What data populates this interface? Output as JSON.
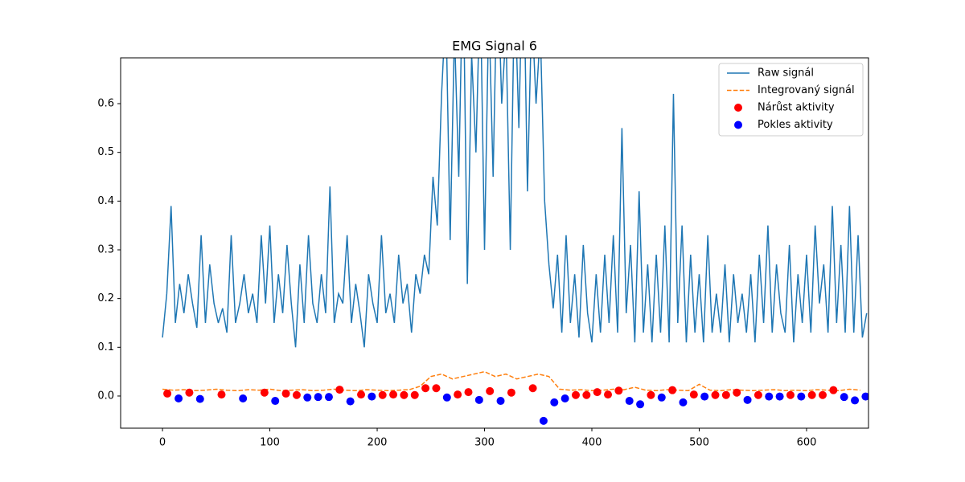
{
  "chart_data": {
    "type": "line",
    "title": "EMG Signal 6",
    "xlim": [
      -39,
      657.7
    ],
    "ylim": [
      -0.066,
      0.694
    ],
    "xticks": [
      0,
      100,
      200,
      300,
      400,
      500,
      600
    ],
    "yticks": [
      {
        "value": 0,
        "label": "0.0"
      },
      0.1,
      0.2,
      0.3,
      0.4,
      0.5,
      0.6
    ],
    "legend": "upper right",
    "series": [
      {
        "name": "Raw signál",
        "color": "#1f77b4",
        "linestyle": "solid",
        "x": [
          0,
          4,
          8,
          12,
          16,
          20,
          24,
          28,
          32,
          36,
          40,
          44,
          48,
          52,
          56,
          60,
          64,
          68,
          72,
          76,
          80,
          84,
          88,
          92,
          96,
          100,
          104,
          108,
          112,
          116,
          120,
          124,
          128,
          132,
          136,
          140,
          144,
          148,
          152,
          156,
          160,
          164,
          168,
          172,
          176,
          180,
          184,
          188,
          192,
          196,
          200,
          204,
          208,
          212,
          216,
          220,
          224,
          228,
          232,
          236,
          240,
          244,
          248,
          252,
          256,
          260,
          264,
          268,
          272,
          276,
          280,
          284,
          288,
          292,
          296,
          300,
          304,
          308,
          312,
          316,
          320,
          324,
          328,
          332,
          336,
          340,
          344,
          348,
          352,
          356,
          360,
          364,
          368,
          372,
          376,
          380,
          384,
          388,
          392,
          396,
          400,
          404,
          408,
          412,
          416,
          420,
          424,
          428,
          432,
          436,
          440,
          444,
          448,
          452,
          456,
          460,
          464,
          468,
          472,
          476,
          480,
          484,
          488,
          492,
          496,
          500,
          504,
          508,
          512,
          516,
          520,
          524,
          528,
          532,
          536,
          540,
          544,
          548,
          552,
          556,
          560,
          564,
          568,
          572,
          576,
          580,
          584,
          588,
          592,
          596,
          600,
          604,
          608,
          612,
          616,
          620,
          624,
          628,
          632,
          636,
          640,
          644,
          648,
          652,
          656
        ],
        "values": [
          0.12,
          0.21,
          0.39,
          0.15,
          0.23,
          0.17,
          0.25,
          0.19,
          0.14,
          0.33,
          0.15,
          0.27,
          0.19,
          0.15,
          0.18,
          0.13,
          0.33,
          0.15,
          0.19,
          0.25,
          0.17,
          0.21,
          0.15,
          0.33,
          0.19,
          0.35,
          0.15,
          0.25,
          0.17,
          0.31,
          0.19,
          0.1,
          0.27,
          0.15,
          0.33,
          0.19,
          0.15,
          0.25,
          0.17,
          0.43,
          0.15,
          0.21,
          0.19,
          0.33,
          0.15,
          0.23,
          0.17,
          0.1,
          0.25,
          0.19,
          0.15,
          0.33,
          0.17,
          0.21,
          0.15,
          0.29,
          0.19,
          0.23,
          0.13,
          0.25,
          0.21,
          0.29,
          0.25,
          0.45,
          0.35,
          0.62,
          0.8,
          0.32,
          0.75,
          0.45,
          0.9,
          0.23,
          0.7,
          0.5,
          0.85,
          0.3,
          0.8,
          0.45,
          0.9,
          0.6,
          0.75,
          0.3,
          0.85,
          0.55,
          0.95,
          0.42,
          0.8,
          0.6,
          0.75,
          0.4,
          0.27,
          0.18,
          0.29,
          0.13,
          0.33,
          0.15,
          0.25,
          0.12,
          0.31,
          0.17,
          0.11,
          0.25,
          0.13,
          0.29,
          0.15,
          0.33,
          0.13,
          0.55,
          0.17,
          0.31,
          0.11,
          0.42,
          0.13,
          0.27,
          0.11,
          0.29,
          0.13,
          0.35,
          0.11,
          0.62,
          0.15,
          0.35,
          0.11,
          0.29,
          0.13,
          0.25,
          0.11,
          0.33,
          0.13,
          0.21,
          0.13,
          0.27,
          0.11,
          0.25,
          0.15,
          0.21,
          0.13,
          0.25,
          0.11,
          0.29,
          0.15,
          0.35,
          0.13,
          0.27,
          0.17,
          0.13,
          0.31,
          0.11,
          0.25,
          0.15,
          0.29,
          0.13,
          0.35,
          0.19,
          0.27,
          0.13,
          0.39,
          0.15,
          0.31,
          0.13,
          0.39,
          0.13,
          0.33,
          0.12,
          0.17
        ]
      },
      {
        "name": "Integrovaný signál",
        "color": "#ff7f0e",
        "linestyle": "dashed",
        "x": [
          0,
          10,
          20,
          30,
          40,
          50,
          60,
          70,
          80,
          90,
          100,
          110,
          120,
          130,
          140,
          150,
          160,
          170,
          180,
          190,
          200,
          210,
          220,
          230,
          240,
          250,
          260,
          270,
          280,
          290,
          300,
          310,
          320,
          330,
          340,
          350,
          360,
          370,
          380,
          390,
          400,
          410,
          420,
          430,
          440,
          450,
          460,
          470,
          480,
          490,
          500,
          510,
          520,
          530,
          540,
          550,
          560,
          570,
          580,
          590,
          600,
          610,
          620,
          630,
          640,
          650
        ],
        "values": [
          0.014,
          0.012,
          0.013,
          0.011,
          0.012,
          0.014,
          0.012,
          0.011,
          0.013,
          0.012,
          0.014,
          0.011,
          0.012,
          0.013,
          0.011,
          0.012,
          0.014,
          0.012,
          0.011,
          0.013,
          0.012,
          0.011,
          0.012,
          0.013,
          0.02,
          0.04,
          0.045,
          0.035,
          0.04,
          0.045,
          0.05,
          0.04,
          0.045,
          0.035,
          0.04,
          0.045,
          0.04,
          0.014,
          0.012,
          0.013,
          0.011,
          0.012,
          0.014,
          0.013,
          0.018,
          0.012,
          0.011,
          0.013,
          0.012,
          0.011,
          0.024,
          0.012,
          0.011,
          0.013,
          0.012,
          0.011,
          0.012,
          0.013,
          0.011,
          0.012,
          0.011,
          0.013,
          0.012,
          0.011,
          0.014,
          0.012
        ]
      },
      {
        "name": "Nárůst aktivity",
        "color": "#ff0000",
        "marker": "o",
        "x": [
          4.5,
          25,
          55,
          95,
          115,
          125,
          165,
          185,
          205,
          215,
          225,
          235,
          245,
          255,
          275,
          285,
          305,
          325,
          345,
          385,
          395,
          405,
          415,
          425,
          455,
          475,
          495,
          515,
          525,
          535,
          555,
          585,
          605,
          615,
          625
        ],
        "values": [
          0.005,
          0.007,
          0.003,
          0.007,
          0.005,
          0.002,
          0.013,
          0.003,
          0.002,
          0.003,
          0.002,
          0.002,
          0.016,
          0.016,
          0.003,
          0.008,
          0.01,
          0.007,
          0.016,
          0.002,
          0.002,
          0.008,
          0.003,
          0.011,
          0.002,
          0.012,
          0.003,
          0.002,
          0.002,
          0.007,
          0.002,
          0.002,
          0.002,
          0.002,
          0.012
        ]
      },
      {
        "name": "Pokles aktivity",
        "color": "#0000ff",
        "marker": "o",
        "x": [
          15,
          35,
          75,
          105,
          135,
          145,
          155,
          175,
          195,
          265,
          295,
          315,
          355,
          365,
          375,
          435,
          445,
          465,
          485,
          505,
          545,
          565,
          575,
          595,
          635,
          645,
          655
        ],
        "values": [
          -0.005,
          -0.006,
          -0.005,
          -0.01,
          -0.003,
          -0.002,
          -0.002,
          -0.011,
          -0.001,
          -0.003,
          -0.008,
          -0.01,
          -0.051,
          -0.013,
          -0.005,
          -0.01,
          -0.017,
          -0.003,
          -0.013,
          -0.001,
          -0.008,
          -0.001,
          -0.001,
          -0.001,
          -0.002,
          -0.009,
          -0.001
        ]
      }
    ]
  }
}
